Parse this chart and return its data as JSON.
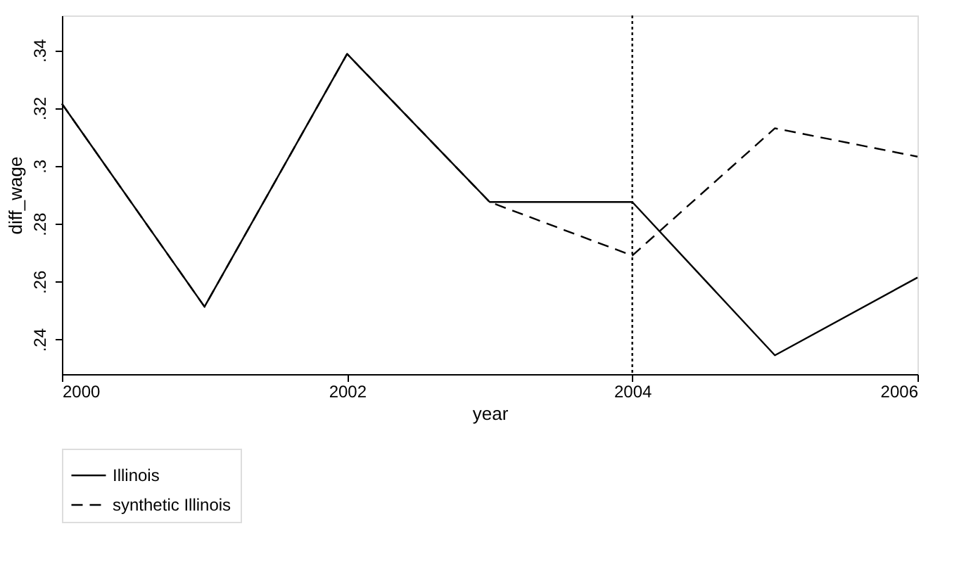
{
  "chart_data": {
    "type": "line",
    "xlabel": "year",
    "ylabel": "diff_wage",
    "x": [
      2000,
      2001,
      2002,
      2003,
      2004,
      2005,
      2006
    ],
    "series": [
      {
        "name": "Illinois",
        "color": "#000000",
        "line_style": "solid",
        "values": [
          0.3215,
          0.2513,
          0.3387,
          0.2875,
          0.2875,
          0.2345,
          0.2614
        ]
      },
      {
        "name": "synthetic Illinois",
        "color": "#000000",
        "line_style": "dashed",
        "values": [
          0.3215,
          0.2513,
          0.3387,
          0.2875,
          0.269,
          0.313,
          0.3032
        ]
      }
    ],
    "xlim": [
      2000,
      2006
    ],
    "xticks": [
      2000,
      2002,
      2004,
      2006
    ],
    "ylim": [
      0.228,
      0.352
    ],
    "yticks": [
      {
        "value": 0.24,
        "label": ".24"
      },
      {
        "value": 0.26,
        "label": ".26"
      },
      {
        "value": 0.28,
        "label": ".28"
      },
      {
        "value": 0.3,
        "label": ".3"
      },
      {
        "value": 0.32,
        "label": ".32"
      },
      {
        "value": 0.34,
        "label": ".34"
      }
    ],
    "ref_lines": [
      {
        "axis": "x",
        "value": 2004,
        "line_style": "dotted",
        "color": "#000000"
      }
    ],
    "legend": "bottom",
    "grid": false,
    "marker": "none"
  }
}
